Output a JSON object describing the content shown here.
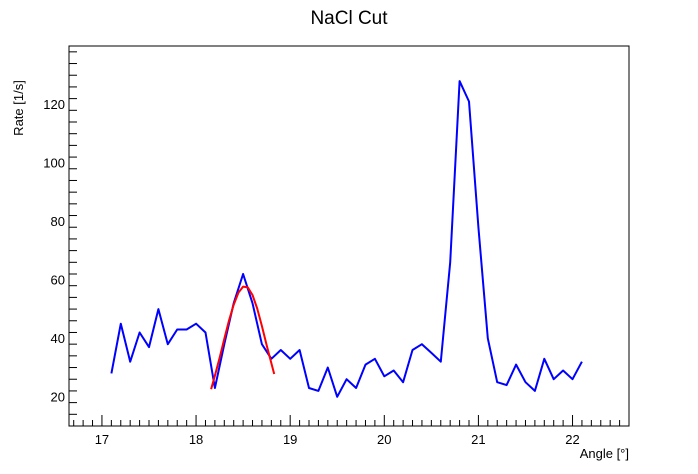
{
  "chart_data": {
    "type": "line",
    "title": "NaCl Cut",
    "xlabel": "Angle [°]",
    "ylabel": "Rate [1/s]",
    "xlim": [
      16.65,
      22.6
    ],
    "ylim": [
      10,
      140
    ],
    "grid": false,
    "x_ticks": [
      "17",
      "18",
      "19",
      "20",
      "21",
      "22"
    ],
    "y_ticks": [
      "20",
      "40",
      "60",
      "80",
      "100",
      "120"
    ],
    "series": [
      {
        "color": "#0000ff",
        "x": [
          17.1,
          17.2,
          17.3,
          17.4,
          17.5,
          17.6,
          17.7,
          17.8,
          17.9,
          18.0,
          18.1,
          18.2,
          18.3,
          18.4,
          18.5,
          18.6,
          18.7,
          18.8,
          18.9,
          19.0,
          19.1,
          19.2,
          19.3,
          19.4,
          19.5,
          19.6,
          19.7,
          19.8,
          19.9,
          20.0,
          20.1,
          20.2,
          20.3,
          20.4,
          20.5,
          20.6,
          20.7,
          20.8,
          20.9,
          21.0,
          21.1,
          21.2,
          21.3,
          21.4,
          21.5,
          21.6,
          21.7,
          21.8,
          21.9,
          22.0,
          22.1
        ],
        "y": [
          28,
          45,
          32,
          42,
          37,
          50,
          38,
          43,
          43,
          45,
          42,
          23,
          38,
          52,
          62,
          52,
          38,
          33,
          36,
          33,
          36,
          23,
          22,
          30,
          20,
          26,
          23,
          31,
          33,
          27,
          29,
          25,
          36,
          38,
          35,
          32,
          66,
          128,
          121,
          78,
          40,
          25,
          24,
          31,
          25,
          22,
          33,
          26,
          29,
          26,
          32
        ]
      },
      {
        "color": "#ff0000",
        "x": [
          18.16,
          18.2,
          18.25,
          18.3,
          18.35,
          18.4,
          18.45,
          18.5,
          18.55,
          18.6,
          18.65,
          18.7,
          18.75,
          18.8,
          18.83
        ],
        "y": [
          22.6,
          27.2,
          33.3,
          39.8,
          46.1,
          51.5,
          55.6,
          57.7,
          57.4,
          54.8,
          50.2,
          44.2,
          37.7,
          31.4,
          27.8
        ]
      }
    ]
  }
}
